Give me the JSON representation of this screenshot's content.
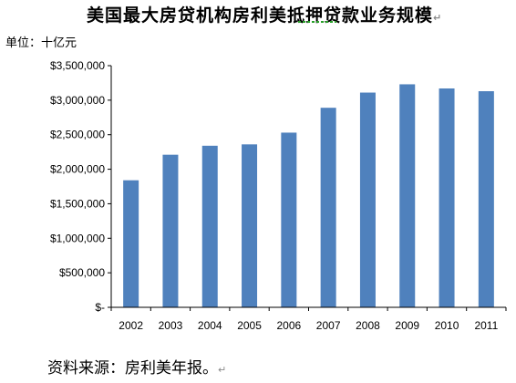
{
  "title": "美国最大房贷机构房利美抵押贷款业务规模",
  "paragraph_mark": "↵",
  "unit_label": "单位：十亿元",
  "source_note": "资料来源：房利美年报。",
  "colors": {
    "bar": "#4f81bd",
    "axis": "#000000"
  },
  "chart_data": {
    "type": "bar",
    "categories": [
      "2002",
      "2003",
      "2004",
      "2005",
      "2006",
      "2007",
      "2008",
      "2009",
      "2010",
      "2011"
    ],
    "values": [
      1840000,
      2210000,
      2340000,
      2360000,
      2530000,
      2890000,
      3110000,
      3230000,
      3170000,
      3130000
    ],
    "title": "美国最大房贷机构房利美抵押贷款业务规模",
    "ylim": [
      0,
      3500000
    ],
    "y_ticks": [
      0,
      500000,
      1000000,
      1500000,
      2000000,
      2500000,
      3000000,
      3500000
    ],
    "y_tick_labels": [
      "$-",
      "$500,000",
      "$1,000,000",
      "$1,500,000",
      "$2,000,000",
      "$2,500,000",
      "$3,000,000",
      "$3,500,000"
    ],
    "grid": false,
    "legend": "none"
  }
}
